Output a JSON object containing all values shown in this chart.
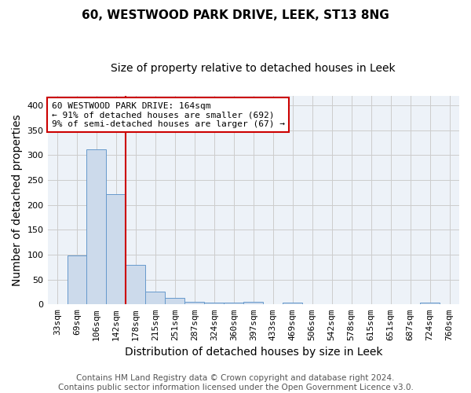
{
  "title": "60, WESTWOOD PARK DRIVE, LEEK, ST13 8NG",
  "subtitle": "Size of property relative to detached houses in Leek",
  "xlabel": "Distribution of detached houses by size in Leek",
  "ylabel": "Number of detached properties",
  "footer_line1": "Contains HM Land Registry data © Crown copyright and database right 2024.",
  "footer_line2": "Contains public sector information licensed under the Open Government Licence v3.0.",
  "bin_labels": [
    "33sqm",
    "69sqm",
    "106sqm",
    "142sqm",
    "178sqm",
    "215sqm",
    "251sqm",
    "287sqm",
    "324sqm",
    "360sqm",
    "397sqm",
    "433sqm",
    "469sqm",
    "506sqm",
    "542sqm",
    "578sqm",
    "615sqm",
    "651sqm",
    "687sqm",
    "724sqm",
    "760sqm"
  ],
  "bar_values": [
    0,
    98,
    312,
    222,
    80,
    25,
    13,
    5,
    3,
    3,
    6,
    0,
    3,
    0,
    0,
    0,
    0,
    0,
    0,
    3,
    0
  ],
  "bar_color": "#ccdaeb",
  "bar_edge_color": "#6699cc",
  "red_line_x": 3.5,
  "red_line_color": "#cc0000",
  "annotation_text": "60 WESTWOOD PARK DRIVE: 164sqm\n← 91% of detached houses are smaller (692)\n9% of semi-detached houses are larger (67) →",
  "annotation_box_color": "#ffffff",
  "annotation_box_edge": "#cc0000",
  "ylim": [
    0,
    420
  ],
  "yticks": [
    0,
    50,
    100,
    150,
    200,
    250,
    300,
    350,
    400
  ],
  "grid_color": "#cccccc",
  "bg_color": "#edf2f8",
  "title_fontsize": 11,
  "subtitle_fontsize": 10,
  "axis_label_fontsize": 10,
  "tick_fontsize": 8,
  "footer_fontsize": 7.5
}
